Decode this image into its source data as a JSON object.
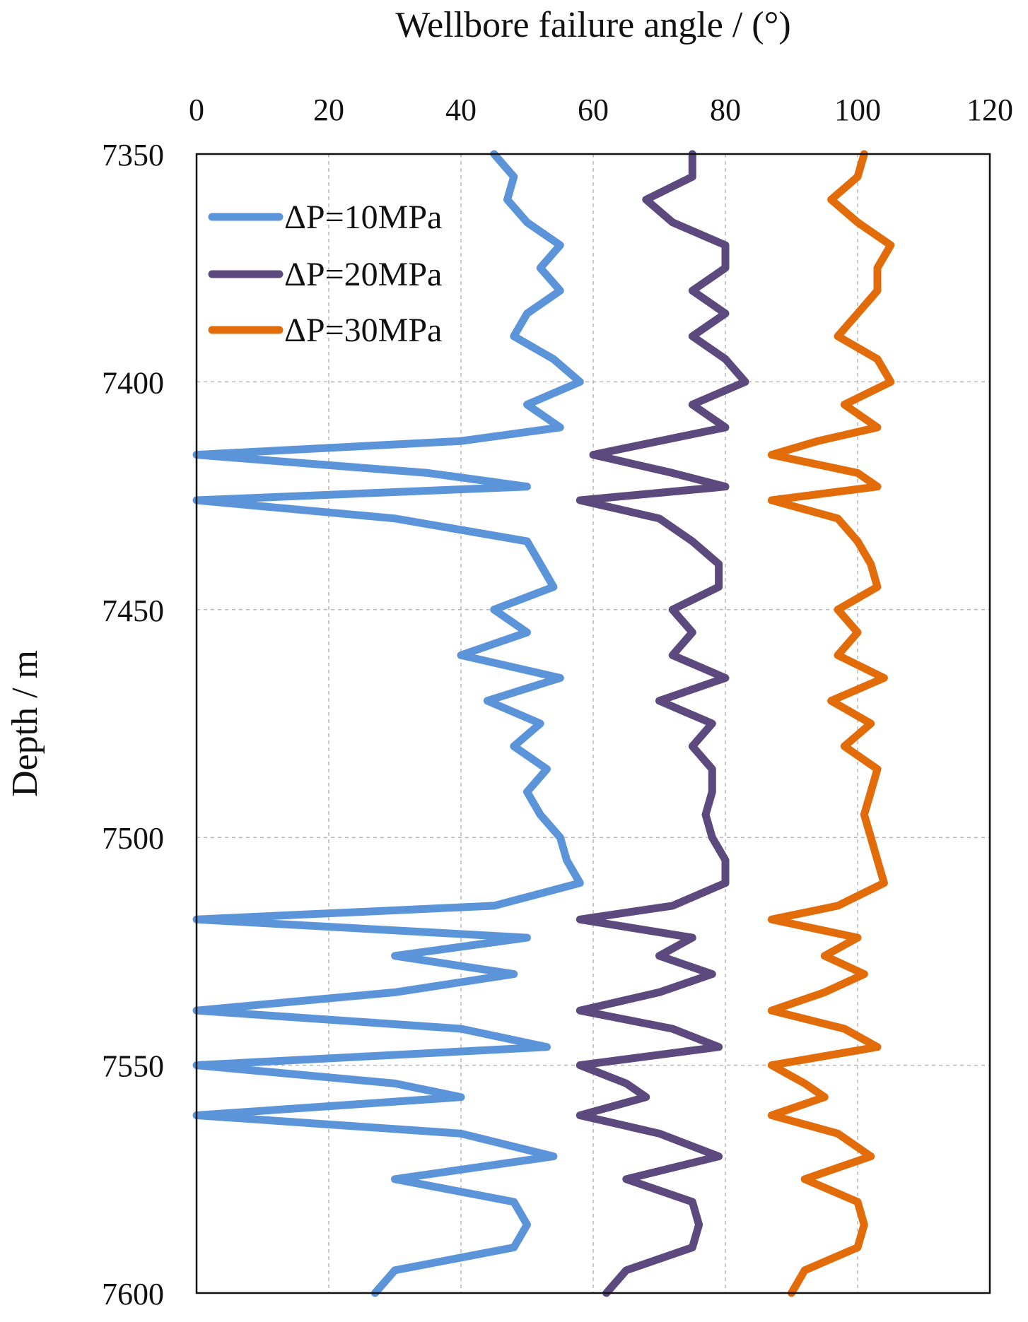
{
  "chart_data": {
    "type": "line",
    "orientation": "depth-vertical",
    "xlabel": "Wellbore failure angle / (°)",
    "ylabel": "Depth / m",
    "xlim": [
      0,
      120
    ],
    "ylim": [
      7350,
      7600
    ],
    "y_inverted": true,
    "xticks": [
      "0",
      "20",
      "40",
      "60",
      "80",
      "100",
      "120"
    ],
    "yticks": [
      "7350",
      "7400",
      "7450",
      "7500",
      "7550",
      "7600"
    ],
    "grid": true,
    "legend_position": "top-left",
    "colors": {
      "s10": "#5b94d8",
      "s20": "#5c4a7e",
      "s30": "#e36c0a"
    },
    "depth": [
      7350,
      7355,
      7360,
      7365,
      7370,
      7375,
      7380,
      7385,
      7390,
      7395,
      7400,
      7405,
      7410,
      7413,
      7416,
      7420,
      7423,
      7426,
      7430,
      7435,
      7440,
      7445,
      7450,
      7455,
      7460,
      7465,
      7470,
      7475,
      7480,
      7485,
      7490,
      7495,
      7500,
      7505,
      7510,
      7515,
      7518,
      7522,
      7526,
      7530,
      7534,
      7538,
      7542,
      7546,
      7550,
      7554,
      7557,
      7561,
      7565,
      7570,
      7575,
      7580,
      7585,
      7590,
      7595,
      7600
    ],
    "series": [
      {
        "name": "ΔP=10MPa",
        "color": "#5b94d8",
        "values": [
          45,
          48,
          47,
          50,
          55,
          52,
          55,
          50,
          48,
          54,
          58,
          50,
          55,
          40,
          0,
          35,
          50,
          0,
          30,
          50,
          52,
          54,
          45,
          50,
          40,
          55,
          44,
          52,
          48,
          53,
          50,
          52,
          55,
          56,
          58,
          45,
          0,
          50,
          30,
          48,
          30,
          0,
          40,
          53,
          0,
          30,
          40,
          0,
          40,
          54,
          30,
          48,
          50,
          48,
          30,
          27
        ]
      },
      {
        "name": "ΔP=20MPa",
        "color": "#5c4a7e",
        "values": [
          75,
          75,
          68,
          72,
          80,
          80,
          75,
          80,
          75,
          80,
          83,
          75,
          80,
          70,
          60,
          72,
          80,
          58,
          70,
          75,
          79,
          79,
          72,
          75,
          72,
          80,
          70,
          78,
          75,
          78,
          78,
          77,
          78,
          80,
          80,
          72,
          58,
          75,
          70,
          78,
          70,
          58,
          72,
          79,
          58,
          65,
          68,
          58,
          70,
          79,
          65,
          75,
          76,
          75,
          65,
          62
        ]
      },
      {
        "name": "ΔP=30MPa",
        "color": "#e36c0a",
        "values": [
          101,
          100,
          96,
          100,
          105,
          103,
          103,
          100,
          97,
          103,
          105,
          98,
          103,
          94,
          87,
          100,
          103,
          87,
          97,
          100,
          102,
          103,
          97,
          100,
          97,
          104,
          96,
          102,
          98,
          103,
          102,
          101,
          102,
          103,
          104,
          97,
          87,
          100,
          95,
          101,
          95,
          87,
          98,
          103,
          87,
          92,
          95,
          87,
          97,
          102,
          92,
          100,
          101,
          100,
          92,
          90
        ]
      }
    ]
  }
}
